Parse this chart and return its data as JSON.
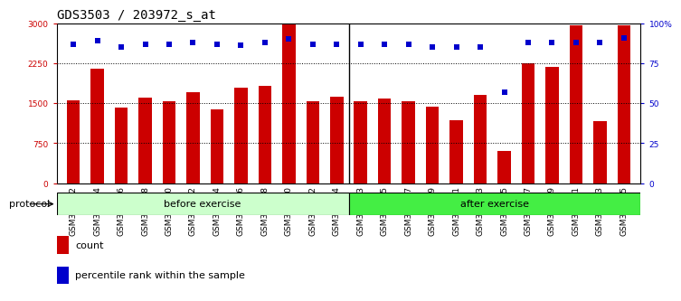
{
  "title": "GDS3503 / 203972_s_at",
  "samples": [
    "GSM306062",
    "GSM306064",
    "GSM306066",
    "GSM306068",
    "GSM306070",
    "GSM306072",
    "GSM306074",
    "GSM306076",
    "GSM306078",
    "GSM306080",
    "GSM306082",
    "GSM306084",
    "GSM306063",
    "GSM306065",
    "GSM306067",
    "GSM306069",
    "GSM306071",
    "GSM306073",
    "GSM306075",
    "GSM306077",
    "GSM306079",
    "GSM306081",
    "GSM306083",
    "GSM306085"
  ],
  "counts": [
    1550,
    2150,
    1420,
    1600,
    1530,
    1700,
    1380,
    1790,
    1820,
    2980,
    1540,
    1620,
    1540,
    1590,
    1540,
    1430,
    1180,
    1650,
    600,
    2240,
    2180,
    2960,
    1170,
    2960
  ],
  "percentiles": [
    87,
    89,
    85,
    87,
    87,
    88,
    87,
    86,
    88,
    90,
    87,
    87,
    87,
    87,
    87,
    85,
    85,
    85,
    57,
    88,
    88,
    88,
    88,
    91
  ],
  "before_count": 12,
  "after_count": 12,
  "before_label": "before exercise",
  "after_label": "after exercise",
  "protocol_label": "protocol",
  "legend_count": "count",
  "legend_percentile": "percentile rank within the sample",
  "ylim_left": [
    0,
    3000
  ],
  "yticks_left": [
    0,
    750,
    1500,
    2250,
    3000
  ],
  "ylim_right": [
    0,
    100
  ],
  "yticks_right": [
    0,
    25,
    50,
    75,
    100
  ],
  "bar_color": "#cc0000",
  "dot_color": "#0000cc",
  "before_bg": "#ccffcc",
  "after_bg": "#44ee44",
  "grid_color": "#000000",
  "bar_width": 0.55,
  "title_fontsize": 10,
  "tick_fontsize": 6.5,
  "label_fontsize": 8
}
